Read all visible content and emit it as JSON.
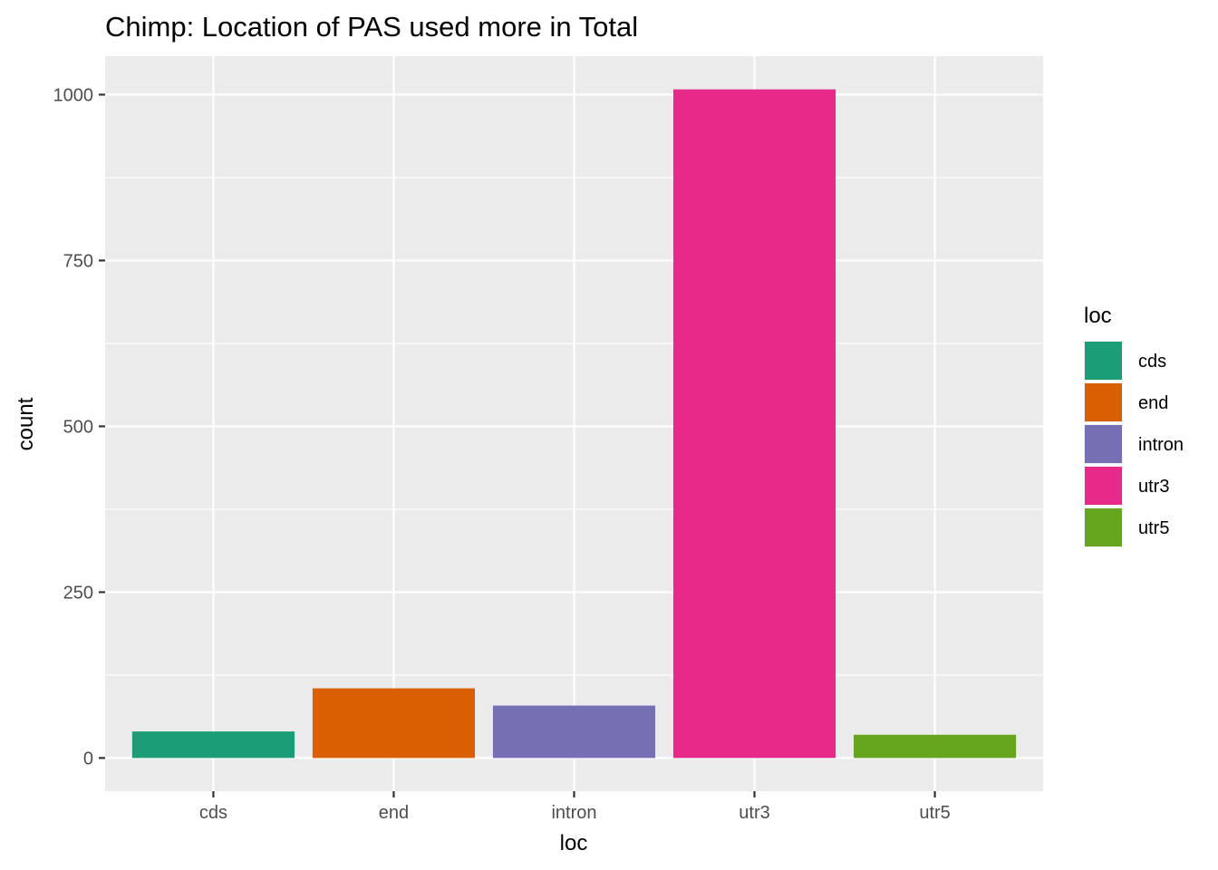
{
  "chart_data": {
    "type": "bar",
    "title": "Chimp: Location of PAS used more in Total",
    "xlabel": "loc",
    "ylabel": "count",
    "categories": [
      "cds",
      "end",
      "intron",
      "utr3",
      "utr5"
    ],
    "values": [
      40,
      105,
      79,
      1008,
      35
    ],
    "colors": [
      "#1b9e77",
      "#d95f02",
      "#7570b3",
      "#e7298a",
      "#66a61e"
    ],
    "ylim": [
      -50,
      1058
    ],
    "yticks": [
      0,
      250,
      500,
      750,
      1000
    ],
    "ytick_labels": [
      "0",
      "250",
      "500",
      "750",
      "1000"
    ],
    "grid": true,
    "panel_background": "#ebebeb",
    "legend": {
      "title": "loc",
      "placement": "right",
      "entries": [
        "cds",
        "end",
        "intron",
        "utr3",
        "utr5"
      ]
    }
  }
}
